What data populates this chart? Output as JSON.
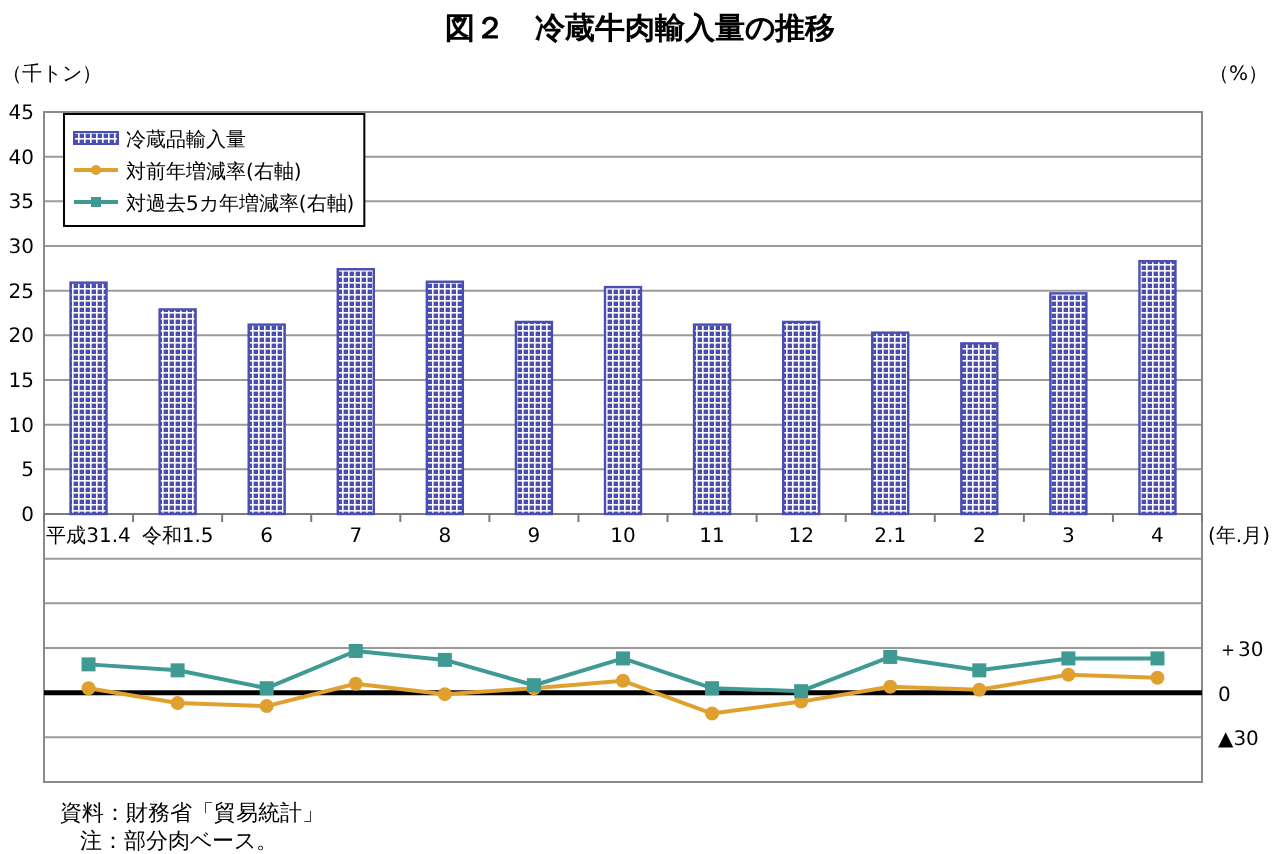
{
  "chart_data": {
    "type": "bar",
    "title": "図２　冷蔵牛肉輸入量の推移",
    "ylabel": "（千トン）",
    "y2label": "（%）",
    "xlabel": "(年.月)",
    "categories": [
      "平成31.4",
      "令和1.5",
      "6",
      "7",
      "8",
      "9",
      "10",
      "11",
      "12",
      "2.1",
      "2",
      "3",
      "4"
    ],
    "series": [
      {
        "name": "冷蔵品輸入量",
        "color": "#4a4eb0",
        "values": [
          25.9,
          22.9,
          21.2,
          27.4,
          26.0,
          21.5,
          25.4,
          21.2,
          21.5,
          20.3,
          19.1,
          24.7,
          28.3
        ]
      },
      {
        "name": "対前年増減率(右軸)",
        "type": "line",
        "axis": "y2",
        "color": "#e0a030",
        "marker": "circle",
        "values": [
          3,
          -7,
          -9,
          6,
          -1,
          3,
          8,
          -14,
          -6,
          4,
          2,
          12,
          10
        ]
      },
      {
        "name": "対過去5カ年増減率(右軸)",
        "type": "line",
        "axis": "y2",
        "color": "#3f9a94",
        "marker": "square",
        "values": [
          19,
          15,
          3,
          28,
          22,
          5,
          23,
          3,
          1,
          24,
          15,
          23,
          23
        ]
      }
    ],
    "ylim": [
      -30,
      45
    ],
    "yticks": [
      {
        "value": -30,
        "label": null
      },
      {
        "value": -25,
        "label": null
      },
      {
        "value": -20,
        "label": null
      },
      {
        "value": -15,
        "label": null
      },
      {
        "value": -10,
        "label": null
      },
      {
        "value": -5,
        "label": null
      },
      0,
      5,
      10,
      15,
      20,
      25,
      30,
      35,
      40,
      45
    ],
    "y2lim": [
      -60,
      390
    ],
    "y2ticks": [
      {
        "value": -30,
        "label": "▲30"
      },
      0,
      {
        "value": 30,
        "label": "＋30"
      }
    ],
    "ref_lines": [
      {
        "axis": "y2",
        "value": 0,
        "color": "#000000"
      }
    ],
    "grid": "y",
    "legend": "top left",
    "annotations": [
      "資料：財務省「貿易統計」",
      "注：部分肉ベース。"
    ]
  }
}
